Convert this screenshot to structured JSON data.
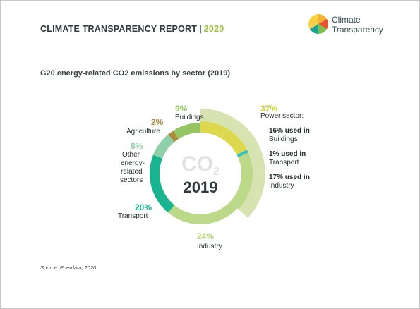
{
  "header": {
    "report_title": "CLIMATE TRANSPARENCY REPORT",
    "separator": "|",
    "year": "2020"
  },
  "logo": {
    "line1": "Climate",
    "line2": "Transparency",
    "colors": [
      "#f5b335",
      "#e8542d",
      "#7cc04b",
      "#1aa38f",
      "#f7d046"
    ]
  },
  "chart_title": "G20 energy-related CO2 emissions by sector (2019)",
  "source": "Source: Enerdata, 2020",
  "center": {
    "co": "CO",
    "sub": "2",
    "year": "2019"
  },
  "chart_data": {
    "type": "pie",
    "title": "G20 energy-related CO2 emissions by sector (2019)",
    "unit": "%",
    "slices": [
      {
        "key": "power",
        "label": "Power sector:",
        "value": 37,
        "pct_label": "37%",
        "color": "#d7e4b2",
        "pct_color": "#c4cf1f"
      },
      {
        "key": "industry",
        "label": "Industry",
        "value": 24,
        "pct_label": "24%",
        "color": "#bcd98a",
        "pct_color": "#b4d67a"
      },
      {
        "key": "transport",
        "label": "Transport",
        "value": 20,
        "pct_label": "20%",
        "color": "#19b38f",
        "pct_color": "#19b38f"
      },
      {
        "key": "other",
        "label_lines": [
          "Other",
          "energy-",
          "related",
          "sectors"
        ],
        "value": 8,
        "pct_label": "8%",
        "color": "#8fd0a8",
        "pct_color": "#8fd0a8"
      },
      {
        "key": "agriculture",
        "label": "Agriculture",
        "value": 2,
        "pct_label": "2%",
        "color": "#ad8c3c",
        "pct_color": "#ad8c3c"
      },
      {
        "key": "buildings",
        "label": "Buildings",
        "value": 9,
        "pct_label": "9%",
        "color": "#94c562",
        "pct_color": "#94c562"
      }
    ],
    "power_breakdown": [
      {
        "key": "power_buildings",
        "label_lines": [
          "16% used in",
          "Buildings"
        ],
        "value": 16,
        "color": "#ddd84e"
      },
      {
        "key": "power_transport",
        "label_lines": [
          "1% used in",
          "Transport"
        ],
        "value": 1,
        "color": "#3cc1b8"
      },
      {
        "key": "power_industry",
        "label_lines": [
          "17% used in",
          "Industry"
        ],
        "value": 17,
        "color": "#bcd98a"
      }
    ]
  }
}
